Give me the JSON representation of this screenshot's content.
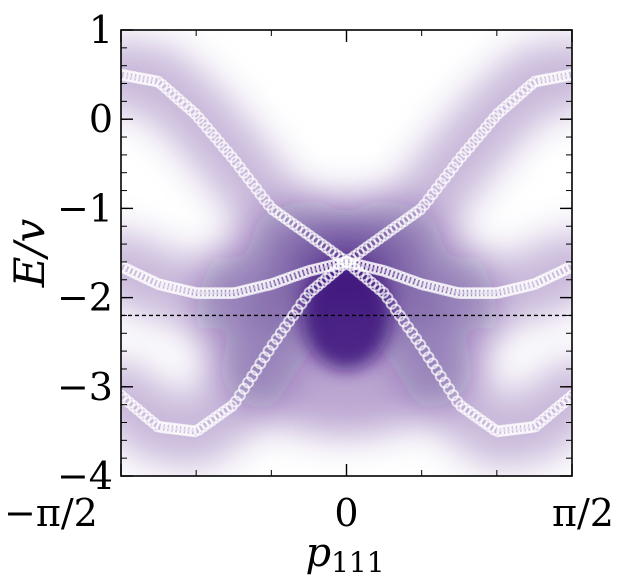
{
  "chart_data": {
    "type": "heatmap",
    "xlabel": "p",
    "xlabel_sub": "111",
    "ylabel": "E/v",
    "xlim": [
      -1.5708,
      1.5708
    ],
    "ylim": [
      -4,
      1
    ],
    "x_ticks": [
      {
        "value": -1.5708,
        "label": "−π/2"
      },
      {
        "value": 0,
        "label": "0"
      },
      {
        "value": 1.5708,
        "label": "π/2"
      }
    ],
    "y_ticks": [
      {
        "value": 1,
        "label": "1"
      },
      {
        "value": 0,
        "label": "0"
      },
      {
        "value": -1,
        "label": "−1"
      },
      {
        "value": -2,
        "label": "−2"
      },
      {
        "value": -3,
        "label": "−3"
      },
      {
        "value": -4,
        "label": "−4"
      }
    ],
    "reference_line": {
      "y": -2.2,
      "style": "dashed",
      "color": "#000000"
    },
    "colormap": [
      "#ffffff",
      "#3b0f7a"
    ],
    "spectral_peak": {
      "x": 0,
      "y": -2.2
    },
    "bands": [
      {
        "offset": -1.55,
        "amplitude": 2.05,
        "x_points": [
          -1.5708,
          -1.309,
          -1.0472,
          -0.7854,
          -0.5236,
          -0.2618,
          0,
          0.2618,
          0.5236,
          0.7854,
          1.0472,
          1.309,
          1.5708
        ],
        "y": [
          0.5,
          0.42,
          0.05,
          -0.45,
          -1.0,
          -1.3,
          -1.6,
          -1.95,
          -2.55,
          -3.2,
          -3.5,
          -3.45,
          -3.1
        ]
      },
      {
        "offset": -1.55,
        "amplitude": 2.05,
        "x_points": [
          -1.5708,
          -1.309,
          -1.0472,
          -0.7854,
          -0.5236,
          -0.2618,
          0,
          0.2618,
          0.5236,
          0.7854,
          1.0472,
          1.309,
          1.5708
        ],
        "y": [
          -3.1,
          -3.45,
          -3.5,
          -3.2,
          -2.55,
          -1.95,
          -1.6,
          -1.3,
          -1.0,
          -0.45,
          0.05,
          0.42,
          0.5
        ]
      },
      {
        "x_points": [
          -1.5708,
          -1.309,
          -1.0472,
          -0.7854,
          -0.5236,
          -0.2618,
          0,
          0.2618,
          0.5236,
          0.7854,
          1.0472,
          1.309,
          1.5708
        ],
        "y": [
          -1.65,
          -1.85,
          -1.95,
          -1.95,
          -1.85,
          -1.7,
          -1.6,
          -1.7,
          -1.85,
          -1.95,
          -1.95,
          -1.85,
          -1.65
        ]
      }
    ],
    "band_marker": {
      "shape": "circle",
      "color": "#ffffff"
    }
  }
}
